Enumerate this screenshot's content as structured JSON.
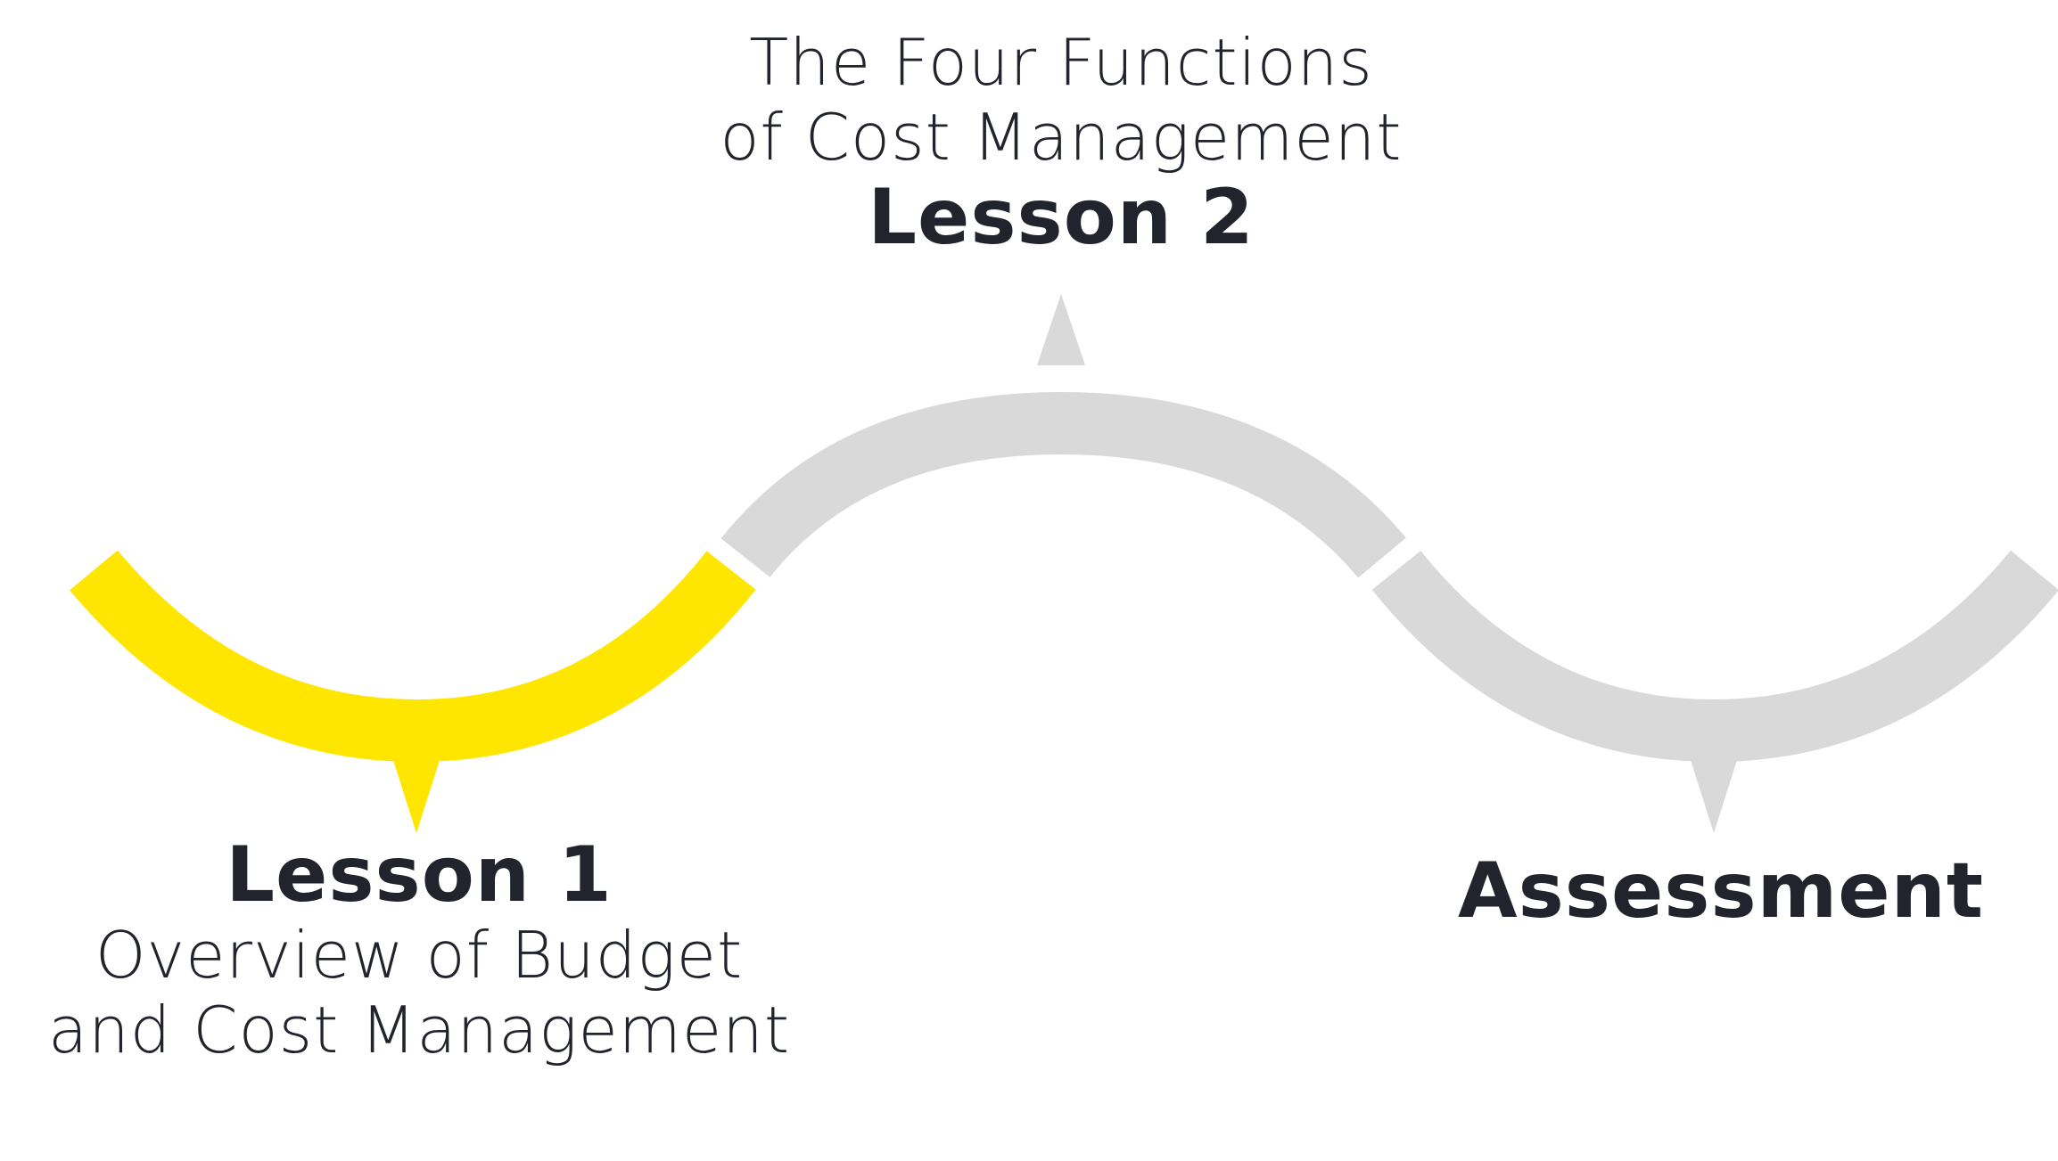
{
  "stages": [
    {
      "id": "lesson-1",
      "heading": "Lesson 1",
      "subtitle_lines": [
        "Overview of Budget",
        "and Cost Management"
      ],
      "state": "active"
    },
    {
      "id": "lesson-2",
      "heading": "Lesson 2",
      "subtitle_lines": [
        "The Four Functions",
        "of Cost Management"
      ],
      "state": "upcoming"
    },
    {
      "id": "assessment",
      "heading": "Assessment",
      "subtitle_lines": [],
      "state": "upcoming"
    }
  ],
  "colors": {
    "active": "#ffe600",
    "upcoming": "#d9d9d9",
    "text": "#22242d",
    "background": "#ffffff"
  }
}
